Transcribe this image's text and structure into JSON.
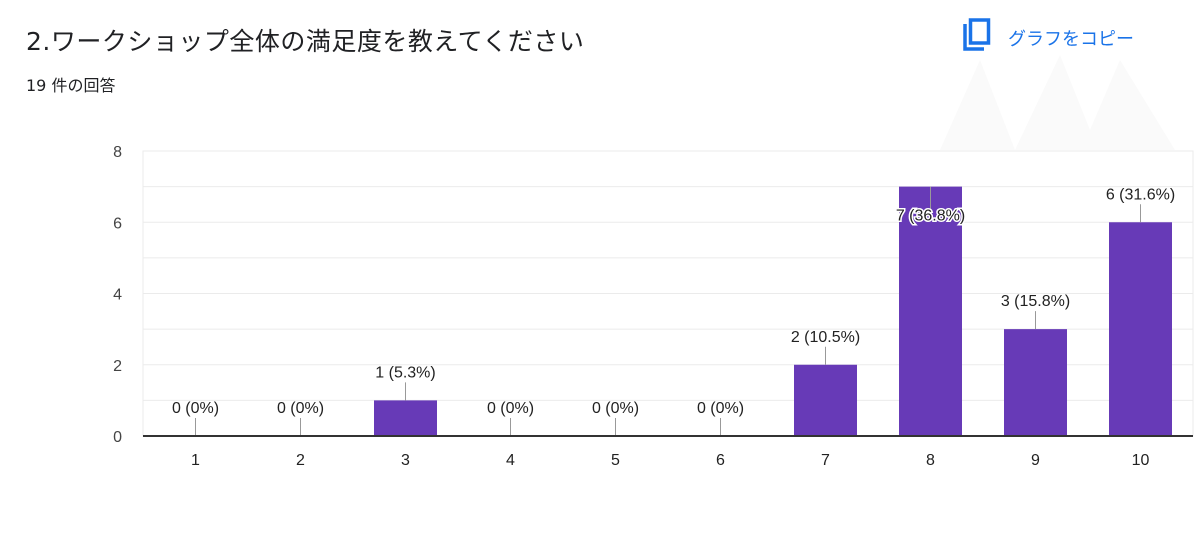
{
  "header": {
    "title": "2.ワークショップ全体の満足度を教えてください",
    "response_count": "19 件の回答",
    "copy_button_label": "グラフをコピー",
    "copy_icon": "copy-icon"
  },
  "colors": {
    "bar": "#673ab7",
    "accent": "#1a73e8",
    "grid": "#ebebeb",
    "axis": "#333333",
    "text": "#222222"
  },
  "chart_data": {
    "type": "bar",
    "title": "2.ワークショップ全体の満足度を教えてください",
    "subtitle": "19 件の回答",
    "categories": [
      "1",
      "2",
      "3",
      "4",
      "5",
      "6",
      "7",
      "8",
      "9",
      "10"
    ],
    "values": [
      0,
      0,
      1,
      0,
      0,
      0,
      2,
      7,
      3,
      6
    ],
    "labels": [
      "0 (0%)",
      "0 (0%)",
      "1 (5.3%)",
      "0 (0%)",
      "0 (0%)",
      "0 (0%)",
      "2 (10.5%)",
      "7 (36.8%)",
      "3 (15.8%)",
      "6 (31.6%)"
    ],
    "percentages": [
      0,
      0,
      5.3,
      0,
      0,
      0,
      10.5,
      36.8,
      15.8,
      31.6
    ],
    "xlabel": "",
    "ylabel": "",
    "ylim": [
      0,
      8
    ],
    "yticks": [
      0,
      2,
      4,
      6,
      8
    ],
    "grid": true,
    "legend": "none"
  }
}
